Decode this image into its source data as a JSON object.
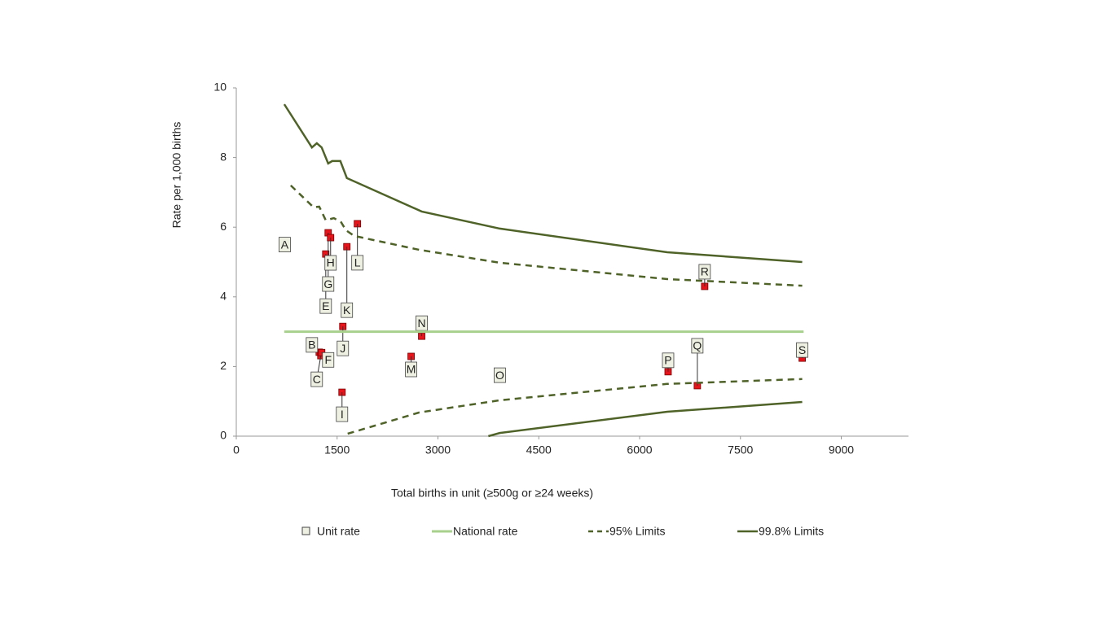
{
  "chart_data": {
    "type": "funnel",
    "x_label": "Total births in unit (≥500g or ≥24 weeks)",
    "y_label": "Rate per 1,000  births",
    "xlim": [
      0,
      10000
    ],
    "xticks": [
      0,
      1500,
      3000,
      4500,
      6000,
      7500,
      9000
    ],
    "ylim": [
      0,
      10
    ],
    "yticks": [
      0,
      2,
      4,
      6,
      8,
      10
    ],
    "series": [
      {
        "name": "Unit rate",
        "color": "#e8141b",
        "point_labels": [
          "A",
          "B",
          "C",
          "E",
          "F",
          "G",
          "H",
          "I",
          "J",
          "K",
          "L",
          "M",
          "N",
          "O",
          "P",
          "Q",
          "R",
          "S"
        ],
        "x": [
          720,
          1234,
          1258,
          1331,
          1270,
          1367,
          1403,
          1573,
          1585,
          1645,
          1802,
          2601,
          2758,
          3920,
          6424,
          6859,
          6968,
          8419
        ],
        "values": [
          5.5,
          2.41,
          2.31,
          5.23,
          2.4,
          5.84,
          5.7,
          1.26,
          3.15,
          5.44,
          6.1,
          2.29,
          2.87,
          1.75,
          1.85,
          1.45,
          4.3,
          2.24
        ]
      },
      {
        "name": "National rate",
        "color": "#a9d18e",
        "x": [
          714,
          8440
        ],
        "values": [
          3,
          3
        ]
      },
      {
        "name": "95% Limits",
        "color": "#4f6228",
        "dashed": true,
        "x": [
          810,
          1150,
          1234,
          1331,
          1452,
          1560,
          1633,
          1754,
          2722,
          3919,
          6411,
          8419
        ],
        "values": [
          7.2,
          6.57,
          6.59,
          6.2,
          6.26,
          6.14,
          5.91,
          5.75,
          5.35,
          4.98,
          4.51,
          4.32
        ],
        "x_lower": [
          1657,
          2722,
          3919,
          6411,
          8419
        ],
        "values_lower": [
          0.07,
          0.68,
          1.03,
          1.5,
          1.64
        ]
      },
      {
        "name": "99.8% Limits",
        "color": "#4f6228",
        "dashed": false,
        "x": [
          714,
          1125,
          1198,
          1270,
          1367,
          1427,
          1548,
          1645,
          2758,
          3919,
          6411,
          8419
        ],
        "values": [
          9.53,
          8.29,
          8.41,
          8.29,
          7.83,
          7.9,
          7.9,
          7.41,
          6.45,
          5.96,
          5.28,
          5.0
        ],
        "x_lower": [
          3750,
          3919,
          6411,
          8419
        ],
        "values_lower": [
          0,
          0.09,
          0.7,
          0.98
        ]
      }
    ]
  }
}
